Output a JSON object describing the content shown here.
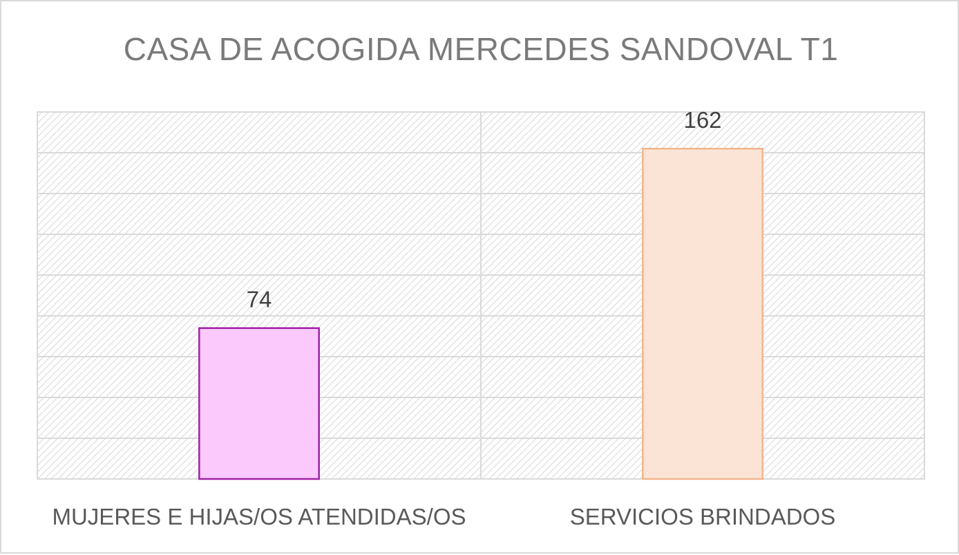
{
  "chart_data": {
    "type": "bar",
    "title": "CASA DE ACOGIDA MERCEDES SANDOVAL T1",
    "categories": [
      "MUJERES E HIJAS/OS ATENDIDAS/OS",
      "SERVICIOS BRINDADOS"
    ],
    "values": [
      74,
      162
    ],
    "data_labels": [
      "74",
      "162"
    ],
    "ylim": [
      0,
      180
    ],
    "grid": true,
    "legend": "none",
    "colors": {
      "fills": [
        "#fbc9fc",
        "#fbe4d6"
      ],
      "strokes": [
        "#a020a8",
        "#f2b48a"
      ],
      "grid": "#d9d9d9",
      "plot_hatch": "#dcdcdc"
    }
  }
}
